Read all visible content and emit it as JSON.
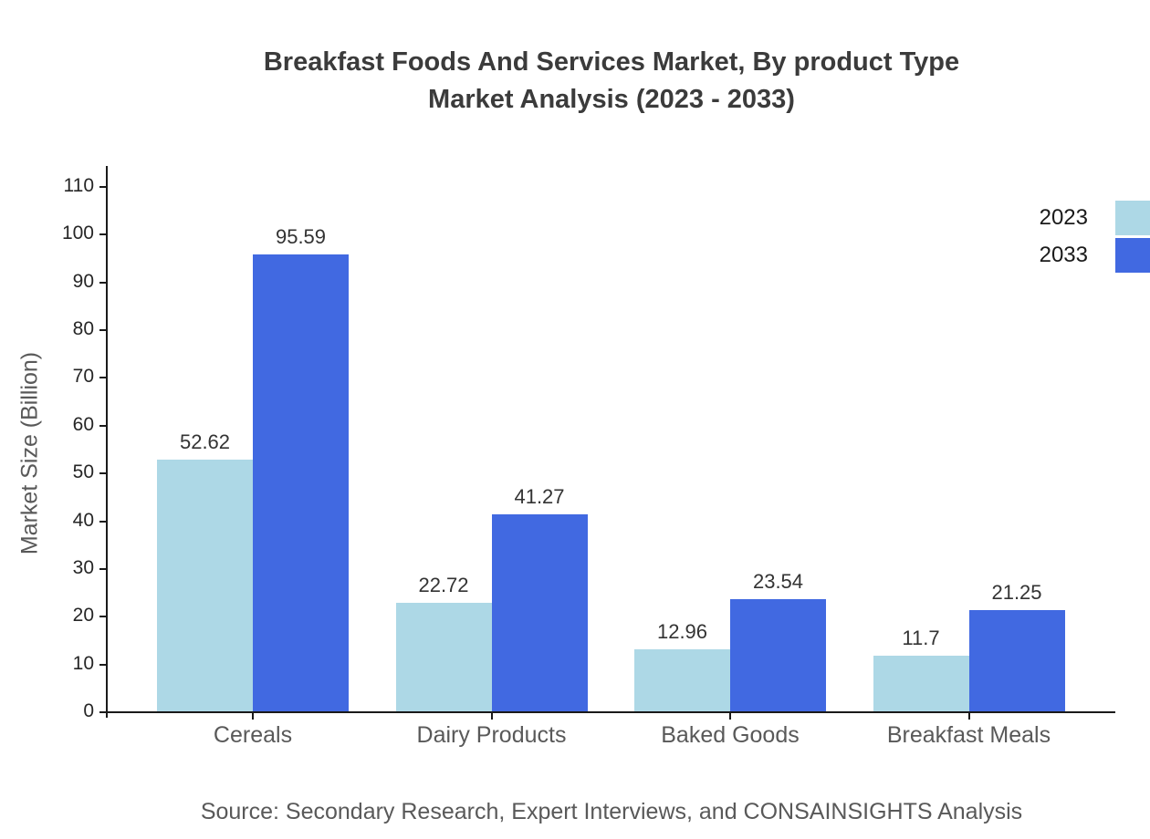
{
  "title": {
    "line1": "Breakfast Foods And Services Market, By product Type",
    "line2": "Market Analysis (2023 - 2033)"
  },
  "source": "Source: Secondary Research, Expert Interviews, and CONSAINSIGHTS Analysis",
  "chart_data": {
    "type": "bar",
    "title": "Breakfast Foods And Services Market, By product Type Market Analysis (2023 - 2033)",
    "categories": [
      "Cereals",
      "Dairy Products",
      "Baked Goods",
      "Breakfast Meals"
    ],
    "series": [
      {
        "name": "2023",
        "color": "#ADD8E6",
        "values": [
          52.62,
          22.72,
          12.96,
          11.7
        ]
      },
      {
        "name": "2033",
        "color": "#4169E1",
        "values": [
          95.59,
          41.27,
          23.54,
          21.25
        ]
      }
    ],
    "data_labels": [
      "52.62",
      "95.59",
      "22.72",
      "41.27",
      "12.96",
      "23.54",
      "11.7",
      "21.25"
    ],
    "xlabel": "",
    "ylabel": "Market Size (Billion)",
    "ylim": [
      0,
      110
    ],
    "ytick_step": 10,
    "yticks": [
      0,
      10,
      20,
      30,
      40,
      50,
      60,
      70,
      80,
      90,
      100,
      110
    ],
    "grid": false,
    "legend_position": "top-right"
  },
  "legend": {
    "items": [
      {
        "label": "2023",
        "color": "#ADD8E6"
      },
      {
        "label": "2033",
        "color": "#4169E1"
      }
    ]
  }
}
